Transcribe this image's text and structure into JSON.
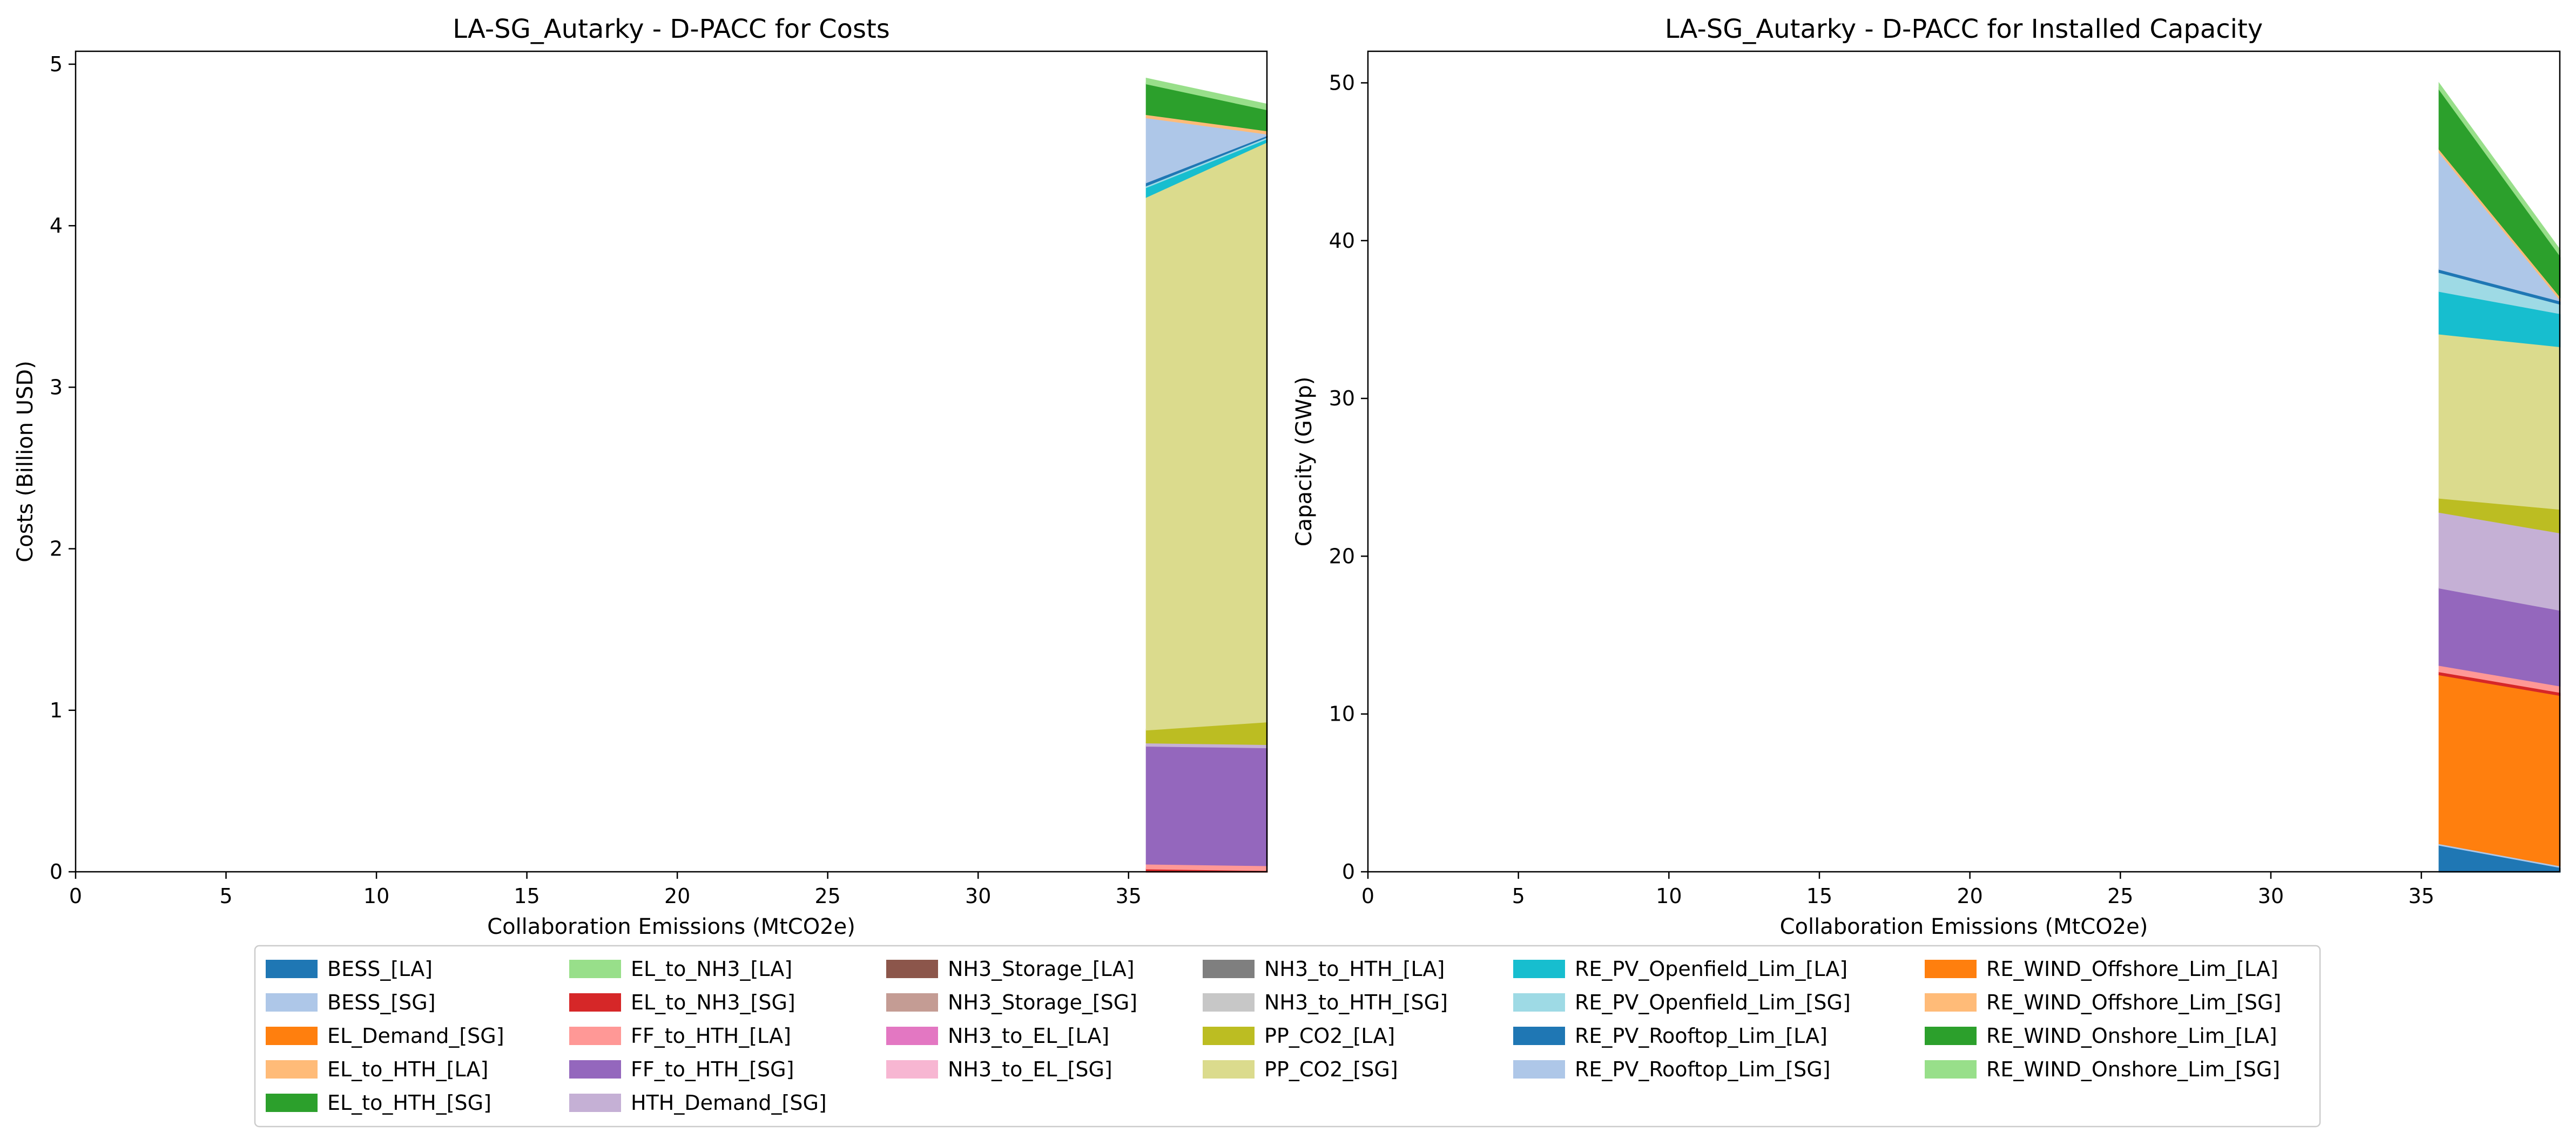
{
  "chart_data": [
    {
      "type": "area",
      "stacked": true,
      "title": "LA-SG_Autarky - D-PACC for Costs",
      "xlabel": "Collaboration Emissions (MtCO2e)",
      "ylabel": "Costs (Billion USD)",
      "xlim": [
        0,
        39.6
      ],
      "ylim": [
        0,
        5.08
      ],
      "xticks": [
        0,
        5,
        10,
        15,
        20,
        25,
        30,
        35
      ],
      "yticks": [
        0,
        1,
        2,
        3,
        4,
        5
      ],
      "grid": false,
      "x": [
        35.6,
        39.6
      ],
      "series": [
        {
          "name": "BESS_[LA]",
          "values": [
            0.0,
            0.0
          ]
        },
        {
          "name": "BESS_[SG]",
          "values": [
            0.0,
            0.0
          ]
        },
        {
          "name": "EL_Demand_[SG]",
          "values": [
            0.0,
            0.0
          ]
        },
        {
          "name": "EL_to_HTH_[LA]",
          "values": [
            0.0,
            0.0
          ]
        },
        {
          "name": "EL_to_HTH_[SG]",
          "values": [
            0.0,
            0.0
          ]
        },
        {
          "name": "EL_to_NH3_[LA]",
          "values": [
            0.0,
            0.0
          ]
        },
        {
          "name": "EL_to_NH3_[SG]",
          "values": [
            0.02,
            0.01
          ]
        },
        {
          "name": "FF_to_HTH_[LA]",
          "values": [
            0.03,
            0.03
          ]
        },
        {
          "name": "FF_to_HTH_[SG]",
          "values": [
            0.73,
            0.73
          ]
        },
        {
          "name": "HTH_Demand_[SG]",
          "values": [
            0.02,
            0.02
          ]
        },
        {
          "name": "NH3_Storage_[LA]",
          "values": [
            0.0,
            0.0
          ]
        },
        {
          "name": "NH3_Storage_[SG]",
          "values": [
            0.0,
            0.0
          ]
        },
        {
          "name": "NH3_to_EL_[LA]",
          "values": [
            0.0,
            0.0
          ]
        },
        {
          "name": "NH3_to_EL_[SG]",
          "values": [
            0.0,
            0.0
          ]
        },
        {
          "name": "NH3_to_HTH_[LA]",
          "values": [
            0.0,
            0.0
          ]
        },
        {
          "name": "NH3_to_HTH_[SG]",
          "values": [
            0.0,
            0.0
          ]
        },
        {
          "name": "PP_CO2_[LA]",
          "values": [
            0.08,
            0.14
          ]
        },
        {
          "name": "PP_CO2_[SG]",
          "values": [
            3.3,
            3.59
          ]
        },
        {
          "name": "RE_PV_Openfield_Lim_[LA]",
          "values": [
            0.06,
            0.02
          ]
        },
        {
          "name": "RE_PV_Openfield_Lim_[SG]",
          "values": [
            0.01,
            0.01
          ]
        },
        {
          "name": "RE_PV_Rooftop_Lim_[LA]",
          "values": [
            0.02,
            0.01
          ]
        },
        {
          "name": "RE_PV_Rooftop_Lim_[SG]",
          "values": [
            0.4,
            0.01
          ]
        },
        {
          "name": "RE_WIND_Offshore_Lim_[LA]",
          "values": [
            0.0,
            0.0
          ]
        },
        {
          "name": "RE_WIND_Offshore_Lim_[SG]",
          "values": [
            0.02,
            0.02
          ]
        },
        {
          "name": "RE_WIND_Onshore_Lim_[LA]",
          "values": [
            0.19,
            0.13
          ]
        },
        {
          "name": "RE_WIND_Onshore_Lim_[SG]",
          "values": [
            0.03,
            0.03
          ]
        }
      ]
    },
    {
      "type": "area",
      "stacked": true,
      "title": "LA-SG_Autarky - D-PACC for Installed Capacity",
      "xlabel": "Collaboration Emissions (MtCO2e)",
      "ylabel": "Capacity (GWp)",
      "xlim": [
        0,
        39.6
      ],
      "ylim": [
        0,
        52
      ],
      "xticks": [
        0,
        5,
        10,
        15,
        20,
        25,
        30,
        35
      ],
      "yticks": [
        0,
        10,
        20,
        30,
        40,
        50
      ],
      "grid": false,
      "x": [
        35.6,
        39.6
      ],
      "series": [
        {
          "name": "BESS_[LA]",
          "values": [
            1.7,
            0.3
          ]
        },
        {
          "name": "BESS_[SG]",
          "values": [
            0.1,
            0.1
          ]
        },
        {
          "name": "EL_Demand_[SG]",
          "values": [
            10.7,
            10.8
          ]
        },
        {
          "name": "EL_to_HTH_[LA]",
          "values": [
            0.0,
            0.0
          ]
        },
        {
          "name": "EL_to_HTH_[SG]",
          "values": [
            0.0,
            0.0
          ]
        },
        {
          "name": "EL_to_NH3_[LA]",
          "values": [
            0.0,
            0.0
          ]
        },
        {
          "name": "EL_to_NH3_[SG]",
          "values": [
            0.2,
            0.2
          ]
        },
        {
          "name": "FF_to_HTH_[LA]",
          "values": [
            0.4,
            0.4
          ]
        },
        {
          "name": "FF_to_HTH_[SG]",
          "values": [
            4.9,
            4.8
          ]
        },
        {
          "name": "HTH_Demand_[SG]",
          "values": [
            4.8,
            4.9
          ]
        },
        {
          "name": "NH3_Storage_[LA]",
          "values": [
            0.0,
            0.0
          ]
        },
        {
          "name": "NH3_Storage_[SG]",
          "values": [
            0.0,
            0.0
          ]
        },
        {
          "name": "NH3_to_EL_[LA]",
          "values": [
            0.0,
            0.0
          ]
        },
        {
          "name": "NH3_to_EL_[SG]",
          "values": [
            0.0,
            0.0
          ]
        },
        {
          "name": "NH3_to_HTH_[LA]",
          "values": [
            0.0,
            0.0
          ]
        },
        {
          "name": "NH3_to_HTH_[SG]",
          "values": [
            0.0,
            0.0
          ]
        },
        {
          "name": "PP_CO2_[LA]",
          "values": [
            0.9,
            1.5
          ]
        },
        {
          "name": "PP_CO2_[SG]",
          "values": [
            10.4,
            10.3
          ]
        },
        {
          "name": "RE_PV_Openfield_Lim_[LA]",
          "values": [
            2.7,
            2.1
          ]
        },
        {
          "name": "RE_PV_Openfield_Lim_[SG]",
          "values": [
            1.2,
            0.6
          ]
        },
        {
          "name": "RE_PV_Rooftop_Lim_[LA]",
          "values": [
            0.2,
            0.2
          ]
        },
        {
          "name": "RE_PV_Rooftop_Lim_[SG]",
          "values": [
            7.4,
            0.1
          ]
        },
        {
          "name": "RE_WIND_Offshore_Lim_[LA]",
          "values": [
            0.0,
            0.0
          ]
        },
        {
          "name": "RE_WIND_Offshore_Lim_[SG]",
          "values": [
            0.2,
            0.2
          ]
        },
        {
          "name": "RE_WIND_Onshore_Lim_[LA]",
          "values": [
            3.8,
            2.6
          ]
        },
        {
          "name": "RE_WIND_Onshore_Lim_[SG]",
          "values": [
            0.3,
            0.3
          ]
        }
      ]
    }
  ],
  "colors": {
    "BESS_[LA]": "#1f77b4",
    "BESS_[SG]": "#aec7e8",
    "EL_Demand_[SG]": "#ff7f0e",
    "EL_to_HTH_[LA]": "#ffbb78",
    "EL_to_HTH_[SG]": "#2ca02c",
    "EL_to_NH3_[LA]": "#98df8a",
    "EL_to_NH3_[SG]": "#d62728",
    "FF_to_HTH_[LA]": "#ff9896",
    "FF_to_HTH_[SG]": "#9467bd",
    "HTH_Demand_[SG]": "#c5b0d5",
    "NH3_Storage_[LA]": "#8c564b",
    "NH3_Storage_[SG]": "#c49c94",
    "NH3_to_EL_[LA]": "#e377c2",
    "NH3_to_EL_[SG]": "#f7b6d2",
    "NH3_to_HTH_[LA]": "#7f7f7f",
    "NH3_to_HTH_[SG]": "#c7c7c7",
    "PP_CO2_[LA]": "#bcbd22",
    "PP_CO2_[SG]": "#dbdb8d",
    "RE_PV_Openfield_Lim_[LA]": "#17becf",
    "RE_PV_Openfield_Lim_[SG]": "#9edae5",
    "RE_PV_Rooftop_Lim_[LA]": "#1f77b4",
    "RE_PV_Rooftop_Lim_[SG]": "#aec7e8",
    "RE_WIND_Offshore_Lim_[LA]": "#ff7f0e",
    "RE_WIND_Offshore_Lim_[SG]": "#ffbb78",
    "RE_WIND_Onshore_Lim_[LA]": "#2ca02c",
    "RE_WIND_Onshore_Lim_[SG]": "#98df8a"
  },
  "legend": {
    "placement": "bottom-center",
    "columns": 6,
    "entries": [
      "BESS_[LA]",
      "BESS_[SG]",
      "EL_Demand_[SG]",
      "EL_to_HTH_[LA]",
      "EL_to_HTH_[SG]",
      "EL_to_NH3_[LA]",
      "EL_to_NH3_[SG]",
      "FF_to_HTH_[LA]",
      "FF_to_HTH_[SG]",
      "HTH_Demand_[SG]",
      "NH3_Storage_[LA]",
      "NH3_Storage_[SG]",
      "NH3_to_EL_[LA]",
      "NH3_to_EL_[SG]",
      "NH3_to_HTH_[LA]",
      "NH3_to_HTH_[SG]",
      "PP_CO2_[LA]",
      "PP_CO2_[SG]",
      "RE_PV_Openfield_Lim_[LA]",
      "RE_PV_Openfield_Lim_[SG]",
      "RE_PV_Rooftop_Lim_[LA]",
      "RE_PV_Rooftop_Lim_[SG]",
      "RE_WIND_Offshore_Lim_[LA]",
      "RE_WIND_Offshore_Lim_[SG]",
      "RE_WIND_Onshore_Lim_[LA]",
      "RE_WIND_Onshore_Lim_[SG]"
    ]
  }
}
